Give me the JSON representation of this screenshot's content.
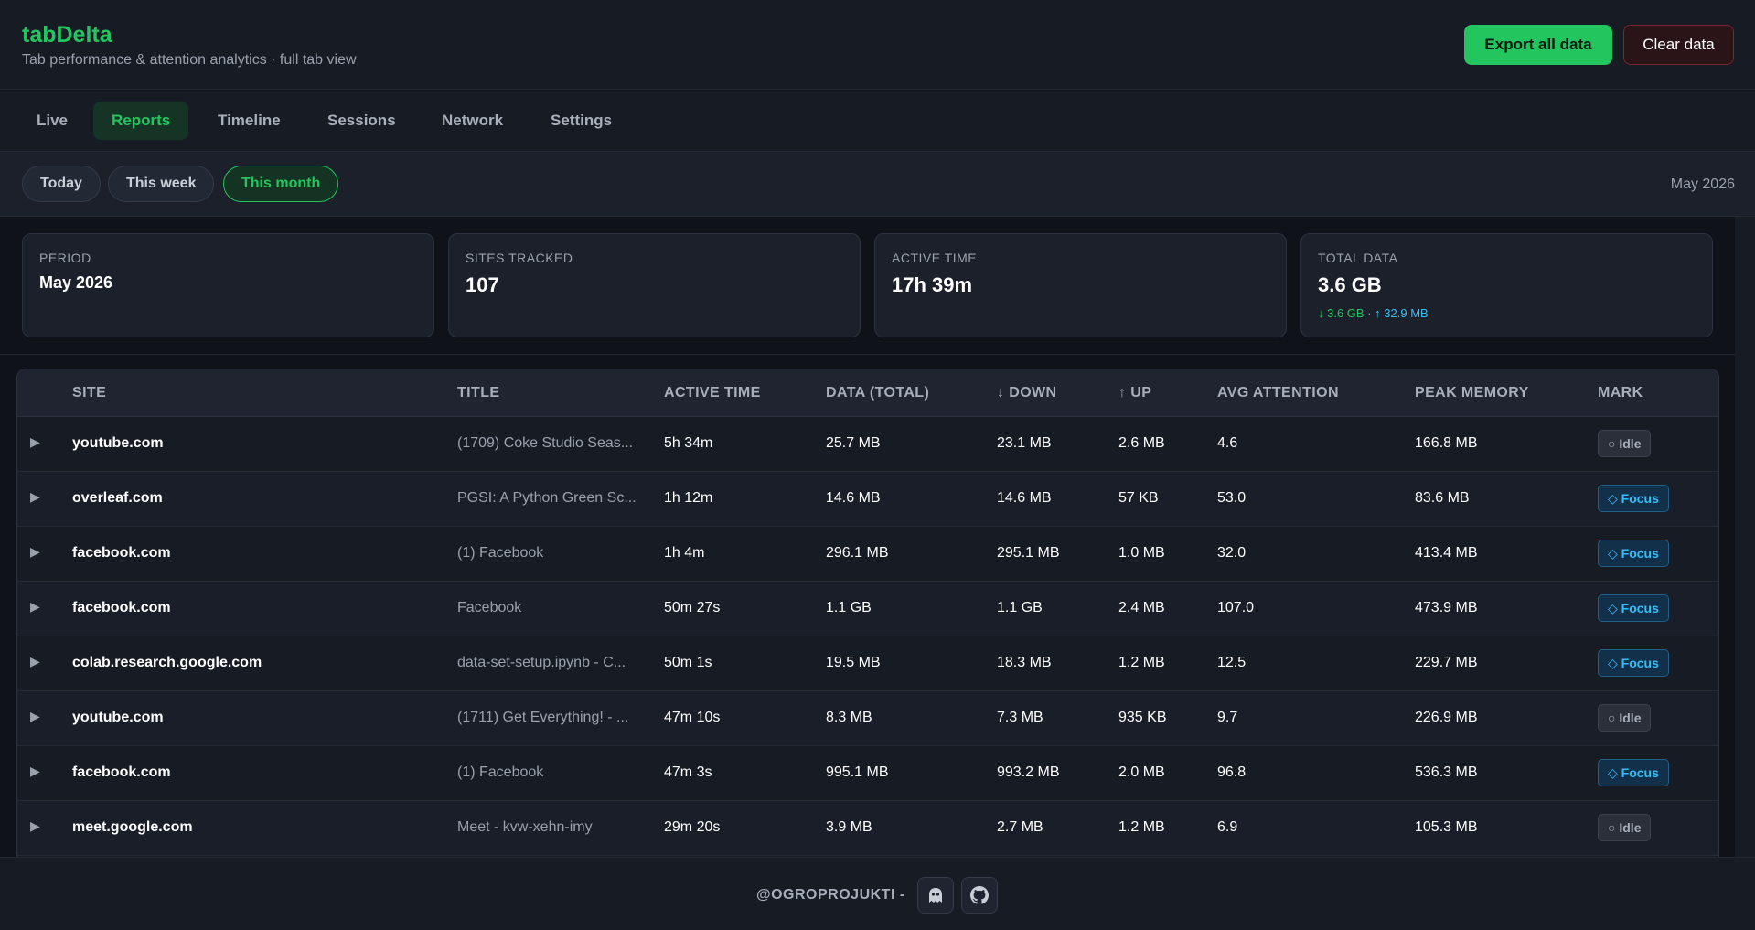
{
  "app": {
    "name": "tabDelta",
    "subtitle": "Tab performance & attention analytics · full tab view",
    "export_label": "Export all data",
    "clear_label": "Clear data"
  },
  "tabs": [
    {
      "label": "Live"
    },
    {
      "label": "Reports",
      "active": true
    },
    {
      "label": "Timeline"
    },
    {
      "label": "Sessions"
    },
    {
      "label": "Network"
    },
    {
      "label": "Settings"
    }
  ],
  "periods": [
    {
      "label": "Today"
    },
    {
      "label": "This week"
    },
    {
      "label": "This month",
      "active": true
    }
  ],
  "current_period_label": "May 2026",
  "summary": {
    "period": {
      "label": "PERIOD",
      "value": "May 2026"
    },
    "sites": {
      "label": "SITES TRACKED",
      "value": "107"
    },
    "active": {
      "label": "ACTIVE TIME",
      "value": "17h 39m"
    },
    "data": {
      "label": "TOTAL DATA",
      "value": "3.6 GB",
      "down": "↓ 3.6 GB",
      "sep": "·",
      "up": "↑ 32.9 MB"
    }
  },
  "table": {
    "columns": [
      "SITE",
      "TITLE",
      "ACTIVE TIME",
      "DATA (TOTAL)",
      "↓ DOWN",
      "↑ UP",
      "AVG ATTENTION",
      "PEAK MEMORY",
      "MARK"
    ],
    "expand_glyph": "▶",
    "rows": [
      {
        "site": "youtube.com",
        "title": "(1709) Coke Studio Seas...",
        "active": "5h 34m",
        "total": "25.7 MB",
        "down": "23.1 MB",
        "up": "2.6 MB",
        "attention": "4.6",
        "memory": "166.8 MB",
        "mark": "Idle"
      },
      {
        "site": "overleaf.com",
        "title": "PGSI: A Python Green Sc...",
        "active": "1h 12m",
        "total": "14.6 MB",
        "down": "14.6 MB",
        "up": "57 KB",
        "attention": "53.0",
        "memory": "83.6 MB",
        "mark": "Focus"
      },
      {
        "site": "facebook.com",
        "title": "(1) Facebook",
        "active": "1h 4m",
        "total": "296.1 MB",
        "down": "295.1 MB",
        "up": "1.0 MB",
        "attention": "32.0",
        "memory": "413.4 MB",
        "mark": "Focus"
      },
      {
        "site": "facebook.com",
        "title": "Facebook",
        "active": "50m 27s",
        "total": "1.1 GB",
        "down": "1.1 GB",
        "up": "2.4 MB",
        "attention": "107.0",
        "memory": "473.9 MB",
        "mark": "Focus"
      },
      {
        "site": "colab.research.google.com",
        "title": "data-set-setup.ipynb - C...",
        "active": "50m 1s",
        "total": "19.5 MB",
        "down": "18.3 MB",
        "up": "1.2 MB",
        "attention": "12.5",
        "memory": "229.7 MB",
        "mark": "Focus"
      },
      {
        "site": "youtube.com",
        "title": "(1711) Get Everything! - ...",
        "active": "47m 10s",
        "total": "8.3 MB",
        "down": "7.3 MB",
        "up": "935 KB",
        "attention": "9.7",
        "memory": "226.9 MB",
        "mark": "Idle"
      },
      {
        "site": "facebook.com",
        "title": "(1) Facebook",
        "active": "47m 3s",
        "total": "995.1 MB",
        "down": "993.2 MB",
        "up": "2.0 MB",
        "attention": "96.8",
        "memory": "536.3 MB",
        "mark": "Focus"
      },
      {
        "site": "meet.google.com",
        "title": "Meet - kvw-xehn-imy",
        "active": "29m 20s",
        "total": "3.9 MB",
        "down": "2.7 MB",
        "up": "1.2 MB",
        "attention": "6.9",
        "memory": "105.3 MB",
        "mark": "Idle"
      }
    ]
  },
  "marks": {
    "Idle": {
      "glyph": "○"
    },
    "Focus": {
      "glyph": "◇"
    }
  },
  "footer": {
    "text": "@OGROPROJUKTI -"
  },
  "colors": {
    "accent": "#22c55e",
    "up": "#38bdf8",
    "danger": "#7a2630"
  }
}
